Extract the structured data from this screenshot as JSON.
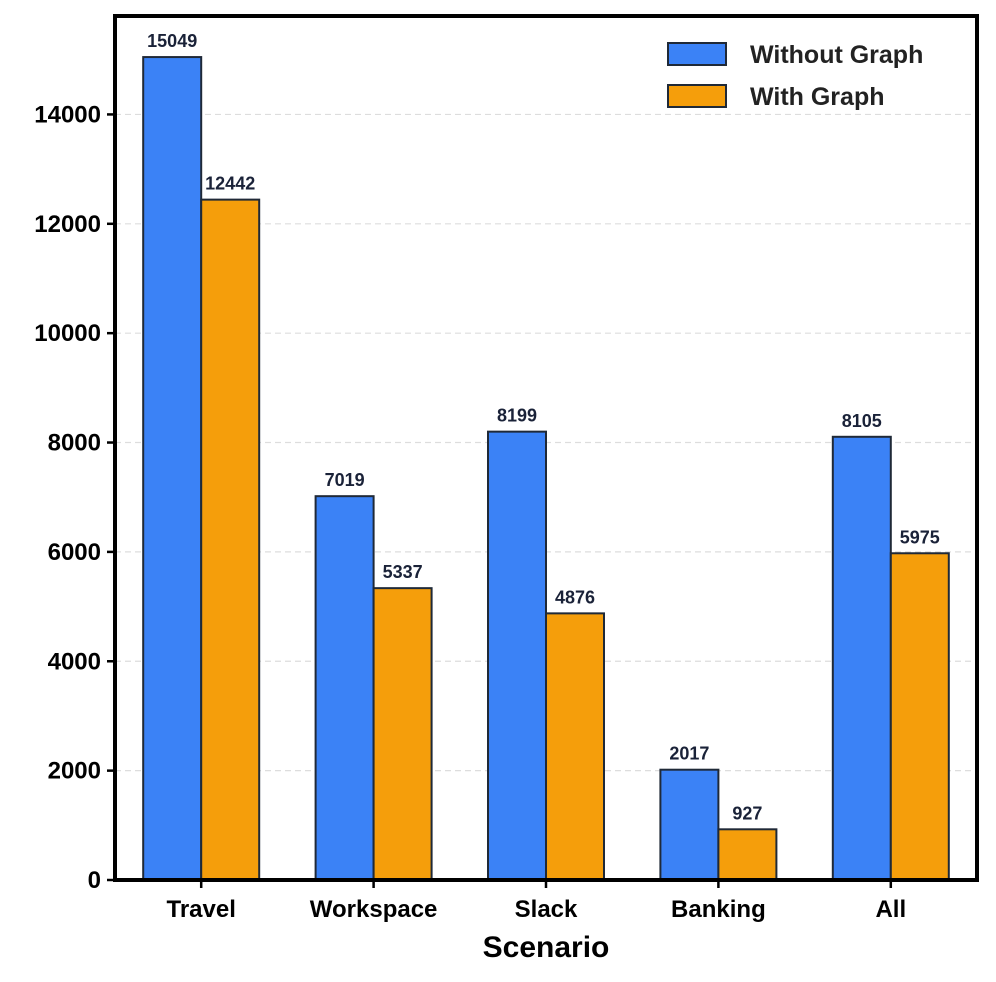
{
  "chart_data": {
    "type": "bar",
    "title": "",
    "xlabel": "Scenario",
    "ylabel": "",
    "categories": [
      "Travel",
      "Workspace",
      "Slack",
      "Banking",
      "All"
    ],
    "series": [
      {
        "name": "Without Graph",
        "values": [
          15049,
          7019,
          8199,
          2017,
          8105
        ],
        "color": "#3b82f6"
      },
      {
        "name": "With Graph",
        "values": [
          12442,
          5337,
          4876,
          927,
          5975
        ],
        "color": "#f59e0b"
      }
    ],
    "yticks": [
      0,
      2000,
      4000,
      6000,
      8000,
      10000,
      12000,
      14000
    ],
    "ylim": [
      0,
      15800
    ],
    "grid": "horizontal-dashed",
    "legend": "top-right"
  }
}
